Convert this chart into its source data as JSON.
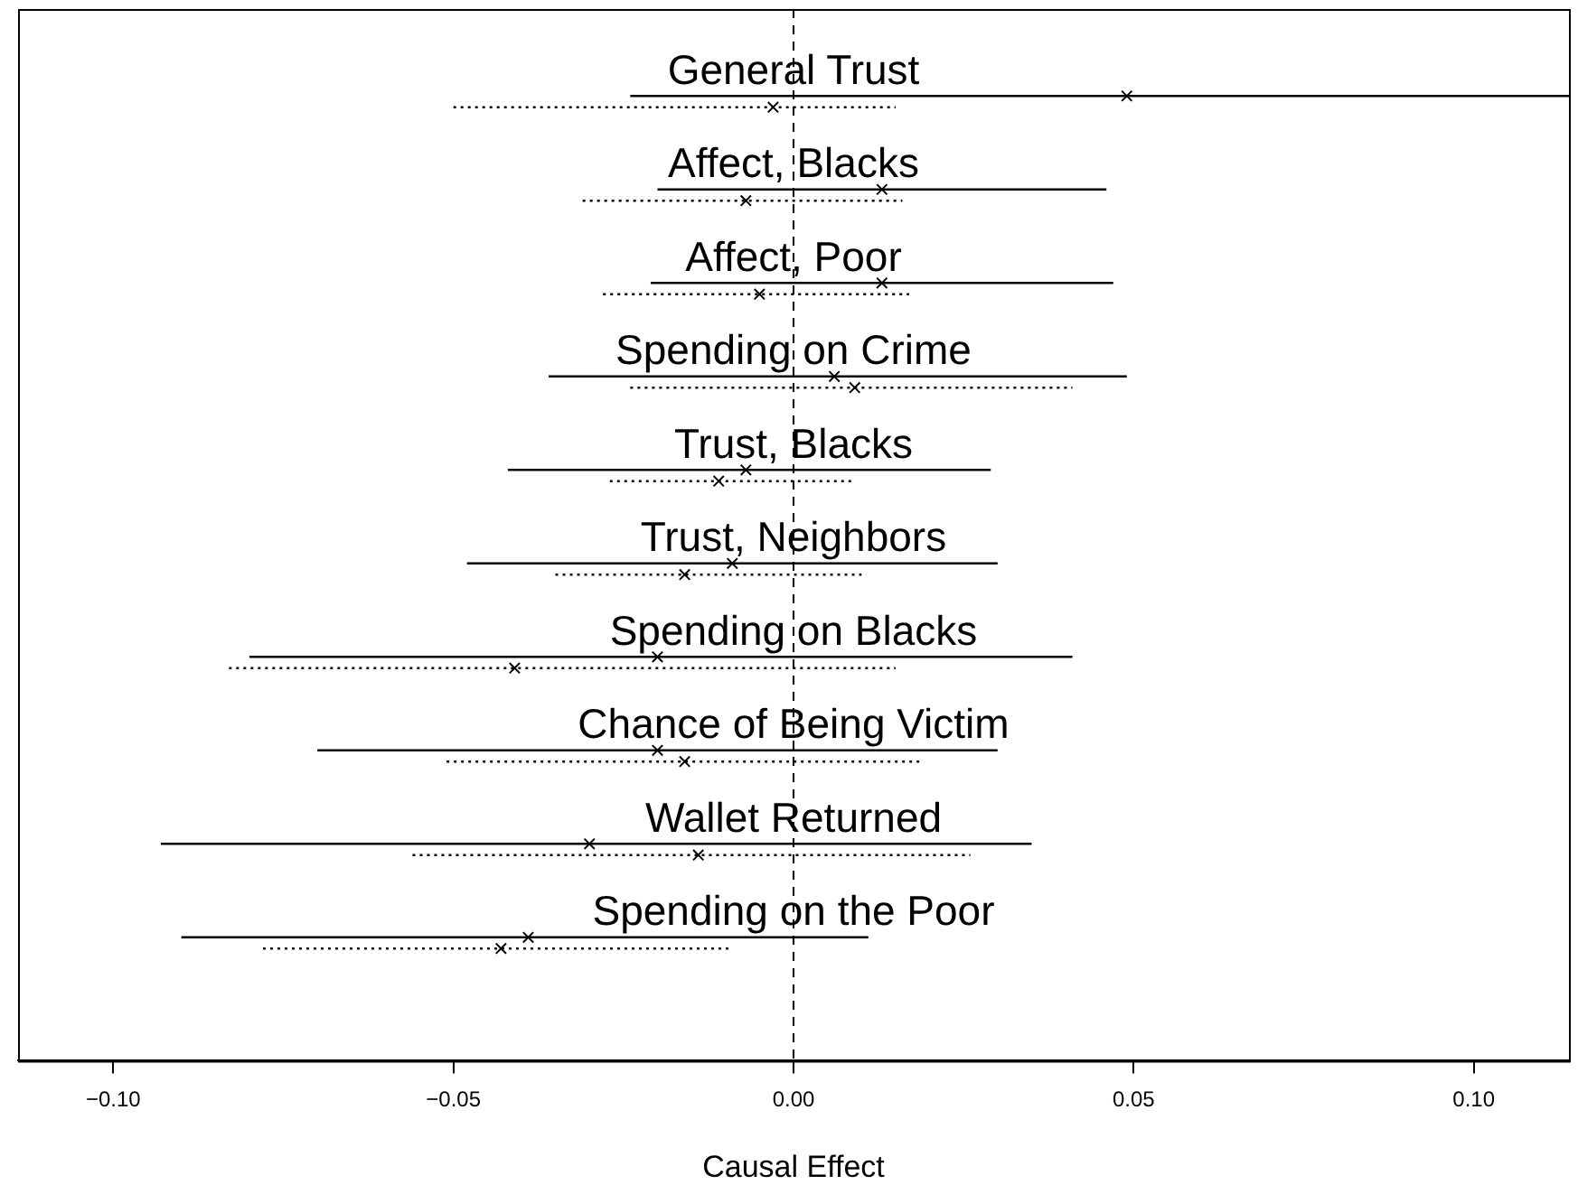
{
  "chart_data": {
    "type": "scatter",
    "orientation": "horizontal",
    "xlabel": "Causal Effect",
    "categories": [
      "General Trust",
      "Affect, Blacks",
      "Affect, Poor",
      "Spending on Crime",
      "Trust, Blacks",
      "Trust, Neighbors",
      "Spending on Blacks",
      "Chance of Being Victim",
      "Wallet Returned",
      "Spending on the Poor"
    ],
    "xlim": [
      -0.114,
      0.114
    ],
    "xticks": [
      {
        "value": -0.1,
        "label": "−0.10"
      },
      {
        "value": -0.05,
        "label": "−0.05"
      },
      {
        "value": 0,
        "label": "0.00"
      },
      {
        "value": 0.05,
        "label": "0.05"
      },
      {
        "value": 0.1,
        "label": "0.10"
      }
    ],
    "ref_lines": [
      {
        "axis": "x",
        "value": 0,
        "line_style": "dashed",
        "color": "#000000"
      }
    ],
    "marker": "cross",
    "grid": false,
    "legend": false,
    "series": [
      {
        "color": "#000000",
        "line_style": "solid",
        "values": [
          0.049,
          0.013,
          0.013,
          0.006,
          -0.007,
          -0.009,
          -0.02,
          -0.02,
          -0.03,
          -0.039
        ],
        "errors": [
          [
            -0.024,
            0.114
          ],
          [
            -0.02,
            0.046
          ],
          [
            -0.021,
            0.047
          ],
          [
            -0.036,
            0.049
          ],
          [
            -0.042,
            0.029
          ],
          [
            -0.048,
            0.03
          ],
          [
            -0.08,
            0.041
          ],
          [
            -0.07,
            0.03
          ],
          [
            -0.093,
            0.035
          ],
          [
            -0.09,
            0.011
          ]
        ]
      },
      {
        "color": "#000000",
        "line_style": "dotted",
        "values": [
          -0.003,
          -0.007,
          -0.005,
          0.009,
          -0.011,
          -0.016,
          -0.041,
          -0.016,
          -0.014,
          -0.043
        ],
        "errors": [
          [
            -0.05,
            0.015
          ],
          [
            -0.031,
            0.016
          ],
          [
            -0.028,
            0.017
          ],
          [
            -0.024,
            0.041
          ],
          [
            -0.027,
            0.009
          ],
          [
            -0.035,
            0.01
          ],
          [
            -0.083,
            0.015
          ],
          [
            -0.051,
            0.019
          ],
          [
            -0.056,
            0.026
          ],
          [
            -0.078,
            -0.009
          ]
        ]
      }
    ]
  }
}
